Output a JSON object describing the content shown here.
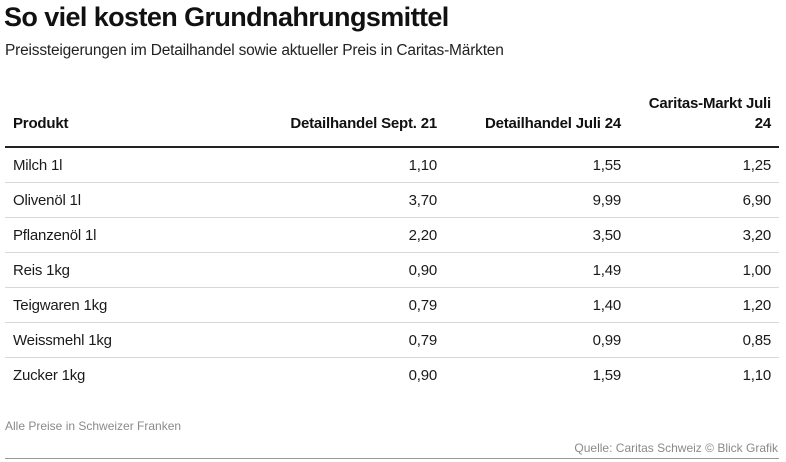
{
  "chart_data": {
    "type": "table",
    "title": "So viel kosten Grundnahrungsmittel",
    "subtitle": "Preissteigerungen im Detailhandel sowie aktueller Preis in Caritas-Märkten",
    "columns": [
      "Produkt",
      "Detailhandel Sept. 21",
      "Detailhandel Juli 24",
      "Caritas-Markt Juli 24"
    ],
    "rows": [
      [
        "Milch 1l",
        "1,10",
        "1,55",
        "1,25"
      ],
      [
        "Olivenöl 1l",
        "3,70",
        "9,99",
        "6,90"
      ],
      [
        "Pflanzenöl 1l",
        "2,20",
        "3,50",
        "3,20"
      ],
      [
        "Reis 1kg",
        "0,90",
        "1,49",
        "1,00"
      ],
      [
        "Teigwaren 1kg",
        "0,79",
        "1,40",
        "1,20"
      ],
      [
        "Weissmehl 1kg",
        "0,79",
        "0,99",
        "0,85"
      ],
      [
        "Zucker 1kg",
        "0,90",
        "1,59",
        "1,10"
      ]
    ],
    "note": "Alle Preise in Schweizer Franken",
    "source": "Quelle: Caritas Schweiz © Blick Grafik"
  }
}
